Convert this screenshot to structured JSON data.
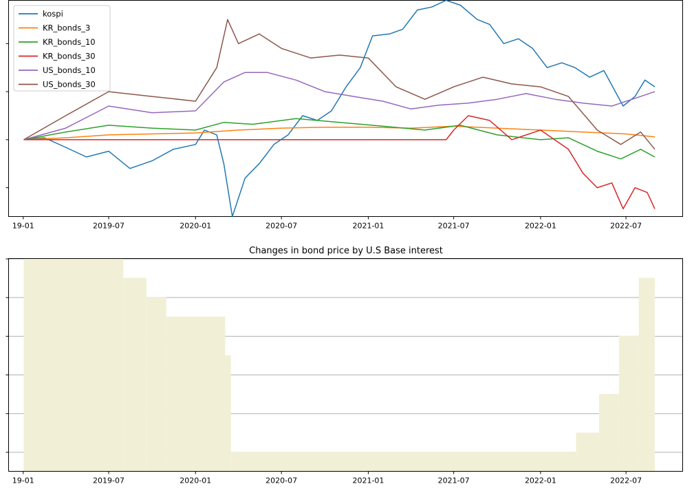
{
  "chart_data": [
    {
      "type": "line",
      "title": "",
      "xlabel": "",
      "ylabel": "",
      "x_ticks": [
        "19-01",
        "2019-07",
        "2020-01",
        "2020-07",
        "2021-01",
        "2021-07",
        "2022-01",
        "2022-07"
      ],
      "xlim": [
        "2018-12-01",
        "2022-10-29"
      ],
      "ylim": [
        -0.8,
        1.45
      ],
      "y_ticks": [
        -0.5,
        0,
        0.5,
        1.0
      ],
      "y_tick_labels_visible": false,
      "grid": false,
      "legend_position": "upper-left",
      "series": [
        {
          "name": "kospi",
          "color": "#1f77b4",
          "points": [
            [
              "2019-01-02",
              0
            ],
            [
              "2019-02-15",
              0.02
            ],
            [
              "2019-04-01",
              -0.08
            ],
            [
              "2019-05-15",
              -0.18
            ],
            [
              "2019-07-01",
              -0.12
            ],
            [
              "2019-08-15",
              -0.3
            ],
            [
              "2019-10-01",
              -0.22
            ],
            [
              "2019-11-15",
              -0.1
            ],
            [
              "2020-01-01",
              -0.05
            ],
            [
              "2020-01-20",
              0.1
            ],
            [
              "2020-02-15",
              0.05
            ],
            [
              "2020-03-01",
              -0.25
            ],
            [
              "2020-03-19",
              -0.8
            ],
            [
              "2020-04-15",
              -0.4
            ],
            [
              "2020-05-15",
              -0.25
            ],
            [
              "2020-06-15",
              -0.05
            ],
            [
              "2020-07-15",
              0.05
            ],
            [
              "2020-08-15",
              0.25
            ],
            [
              "2020-09-15",
              0.2
            ],
            [
              "2020-10-15",
              0.3
            ],
            [
              "2020-11-15",
              0.55
            ],
            [
              "2020-12-15",
              0.75
            ],
            [
              "2021-01-10",
              1.08
            ],
            [
              "2021-02-15",
              1.1
            ],
            [
              "2021-03-15",
              1.15
            ],
            [
              "2021-04-15",
              1.35
            ],
            [
              "2021-05-15",
              1.38
            ],
            [
              "2021-06-15",
              1.45
            ],
            [
              "2021-07-15",
              1.4
            ],
            [
              "2021-08-20",
              1.25
            ],
            [
              "2021-09-15",
              1.2
            ],
            [
              "2021-10-15",
              1.0
            ],
            [
              "2021-11-15",
              1.05
            ],
            [
              "2021-12-15",
              0.95
            ],
            [
              "2022-01-15",
              0.75
            ],
            [
              "2022-02-15",
              0.8
            ],
            [
              "2022-03-15",
              0.75
            ],
            [
              "2022-04-15",
              0.65
            ],
            [
              "2022-05-15",
              0.72
            ],
            [
              "2022-06-25",
              0.35
            ],
            [
              "2022-07-20",
              0.45
            ],
            [
              "2022-08-10",
              0.62
            ],
            [
              "2022-08-31",
              0.55
            ]
          ]
        },
        {
          "name": "KR_bonds_3",
          "color": "#ff7f0e",
          "points": [
            [
              "2019-01-02",
              0
            ],
            [
              "2019-04-01",
              0.02
            ],
            [
              "2019-07-01",
              0.05
            ],
            [
              "2019-10-01",
              0.06
            ],
            [
              "2020-01-01",
              0.07
            ],
            [
              "2020-04-01",
              0.1
            ],
            [
              "2020-07-01",
              0.12
            ],
            [
              "2020-10-01",
              0.13
            ],
            [
              "2021-01-01",
              0.13
            ],
            [
              "2021-04-01",
              0.12
            ],
            [
              "2021-07-01",
              0.14
            ],
            [
              "2021-10-01",
              0.12
            ],
            [
              "2022-01-01",
              0.1
            ],
            [
              "2022-04-01",
              0.08
            ],
            [
              "2022-07-01",
              0.06
            ],
            [
              "2022-08-31",
              0.03
            ]
          ]
        },
        {
          "name": "KR_bonds_10",
          "color": "#2ca02c",
          "points": [
            [
              "2019-01-02",
              0
            ],
            [
              "2019-04-01",
              0.08
            ],
            [
              "2019-07-01",
              0.15
            ],
            [
              "2019-10-01",
              0.12
            ],
            [
              "2020-01-01",
              0.1
            ],
            [
              "2020-03-01",
              0.18
            ],
            [
              "2020-05-01",
              0.16
            ],
            [
              "2020-08-01",
              0.22
            ],
            [
              "2020-11-01",
              0.18
            ],
            [
              "2021-02-01",
              0.14
            ],
            [
              "2021-05-01",
              0.1
            ],
            [
              "2021-07-15",
              0.15
            ],
            [
              "2021-10-01",
              0.05
            ],
            [
              "2022-01-01",
              0.0
            ],
            [
              "2022-03-01",
              0.02
            ],
            [
              "2022-05-01",
              -0.12
            ],
            [
              "2022-06-20",
              -0.2
            ],
            [
              "2022-08-01",
              -0.1
            ],
            [
              "2022-08-31",
              -0.18
            ]
          ]
        },
        {
          "name": "KR_bonds_30",
          "color": "#d62728",
          "points": [
            [
              "2019-01-02",
              0
            ],
            [
              "2021-06-15",
              0
            ],
            [
              "2021-07-01",
              0.1
            ],
            [
              "2021-08-01",
              0.25
            ],
            [
              "2021-09-15",
              0.2
            ],
            [
              "2021-11-01",
              0.0
            ],
            [
              "2022-01-01",
              0.1
            ],
            [
              "2022-03-01",
              -0.1
            ],
            [
              "2022-04-01",
              -0.35
            ],
            [
              "2022-05-01",
              -0.5
            ],
            [
              "2022-06-01",
              -0.45
            ],
            [
              "2022-06-25",
              -0.72
            ],
            [
              "2022-07-20",
              -0.5
            ],
            [
              "2022-08-15",
              -0.55
            ],
            [
              "2022-08-31",
              -0.72
            ]
          ]
        },
        {
          "name": "US_bonds_10",
          "color": "#9467bd",
          "points": [
            [
              "2019-01-02",
              0
            ],
            [
              "2019-04-01",
              0.12
            ],
            [
              "2019-07-01",
              0.35
            ],
            [
              "2019-10-01",
              0.28
            ],
            [
              "2020-01-01",
              0.3
            ],
            [
              "2020-03-01",
              0.6
            ],
            [
              "2020-04-15",
              0.7
            ],
            [
              "2020-06-01",
              0.7
            ],
            [
              "2020-08-01",
              0.62
            ],
            [
              "2020-10-01",
              0.5
            ],
            [
              "2020-12-01",
              0.45
            ],
            [
              "2021-02-01",
              0.4
            ],
            [
              "2021-04-01",
              0.32
            ],
            [
              "2021-06-01",
              0.36
            ],
            [
              "2021-08-01",
              0.38
            ],
            [
              "2021-10-01",
              0.42
            ],
            [
              "2021-12-01",
              0.48
            ],
            [
              "2022-02-01",
              0.42
            ],
            [
              "2022-04-01",
              0.38
            ],
            [
              "2022-06-01",
              0.35
            ],
            [
              "2022-08-01",
              0.45
            ],
            [
              "2022-08-31",
              0.5
            ]
          ]
        },
        {
          "name": "US_bonds_30",
          "color": "#8c564b",
          "points": [
            [
              "2019-01-02",
              0
            ],
            [
              "2019-04-01",
              0.25
            ],
            [
              "2019-07-01",
              0.5
            ],
            [
              "2019-10-01",
              0.45
            ],
            [
              "2020-01-01",
              0.4
            ],
            [
              "2020-02-15",
              0.75
            ],
            [
              "2020-03-09",
              1.25
            ],
            [
              "2020-04-01",
              1.0
            ],
            [
              "2020-05-15",
              1.1
            ],
            [
              "2020-07-01",
              0.95
            ],
            [
              "2020-09-01",
              0.85
            ],
            [
              "2020-11-01",
              0.88
            ],
            [
              "2021-01-01",
              0.85
            ],
            [
              "2021-03-01",
              0.55
            ],
            [
              "2021-05-01",
              0.42
            ],
            [
              "2021-07-01",
              0.55
            ],
            [
              "2021-09-01",
              0.65
            ],
            [
              "2021-11-01",
              0.58
            ],
            [
              "2022-01-01",
              0.55
            ],
            [
              "2022-03-01",
              0.45
            ],
            [
              "2022-05-01",
              0.1
            ],
            [
              "2022-06-20",
              -0.05
            ],
            [
              "2022-08-01",
              0.08
            ],
            [
              "2022-08-31",
              -0.1
            ]
          ]
        }
      ]
    },
    {
      "type": "area",
      "title": "Changes in bond price by U.S Base interest",
      "xlabel": "",
      "ylabel": "",
      "x_ticks": [
        "19-01",
        "2019-07",
        "2020-01",
        "2020-07",
        "2021-01",
        "2021-07",
        "2022-01",
        "2022-07"
      ],
      "xlim": [
        "2018-12-01",
        "2022-10-29"
      ],
      "ylim": [
        0,
        2.75
      ],
      "y_ticks": [
        0.25,
        0.75,
        1.25,
        1.75,
        2.25,
        2.75
      ],
      "y_tick_labels_visible": false,
      "grid": "y",
      "fill_color": "#f1f0d7",
      "steps": [
        {
          "from": "2019-01-02",
          "to": "2019-08-01",
          "value": 2.75
        },
        {
          "from": "2019-08-01",
          "to": "2019-09-19",
          "value": 2.5
        },
        {
          "from": "2019-09-19",
          "to": "2019-10-31",
          "value": 2.25
        },
        {
          "from": "2019-10-31",
          "to": "2020-03-04",
          "value": 2.0
        },
        {
          "from": "2020-03-04",
          "to": "2020-03-16",
          "value": 1.5
        },
        {
          "from": "2020-03-16",
          "to": "2022-03-17",
          "value": 0.25
        },
        {
          "from": "2022-03-17",
          "to": "2022-05-05",
          "value": 0.5
        },
        {
          "from": "2022-05-05",
          "to": "2022-06-16",
          "value": 1.0
        },
        {
          "from": "2022-06-16",
          "to": "2022-07-28",
          "value": 1.75
        },
        {
          "from": "2022-07-28",
          "to": "2022-08-31",
          "value": 2.5
        }
      ]
    }
  ]
}
